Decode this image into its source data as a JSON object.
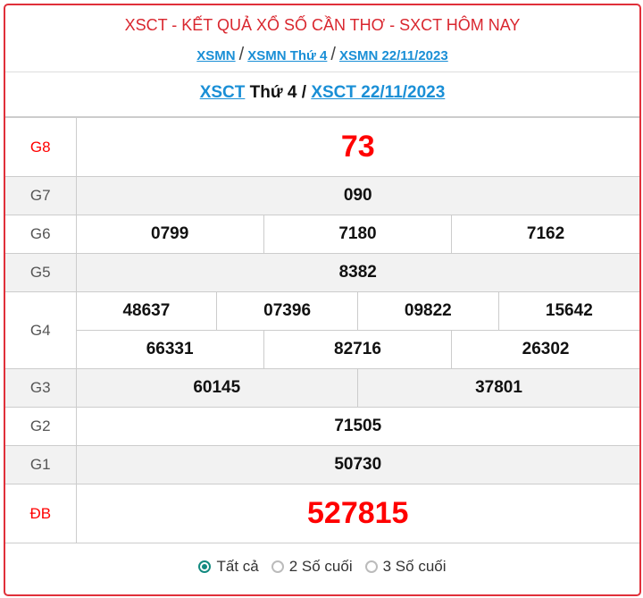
{
  "header": {
    "title": "XSCT - KẾT QUẢ XỔ SỐ CẦN THƠ - SXCT HÔM NAY",
    "links": [
      "XSMN",
      "XSMN Thứ 4",
      "XSMN 22/11/2023"
    ],
    "separator": "/"
  },
  "subheader": {
    "link1": "XSCT",
    "text": "Thứ 4 /",
    "link2": "XSCT 22/11/2023"
  },
  "results": {
    "g8": {
      "label": "G8",
      "values": [
        "73"
      ]
    },
    "g7": {
      "label": "G7",
      "values": [
        "090"
      ]
    },
    "g6": {
      "label": "G6",
      "values": [
        "0799",
        "7180",
        "7162"
      ]
    },
    "g5": {
      "label": "G5",
      "values": [
        "8382"
      ]
    },
    "g4": {
      "label": "G4",
      "values": [
        "48637",
        "07396",
        "09822",
        "15642",
        "66331",
        "82716",
        "26302"
      ]
    },
    "g3": {
      "label": "G3",
      "values": [
        "60145",
        "37801"
      ]
    },
    "g2": {
      "label": "G2",
      "values": [
        "71505"
      ]
    },
    "g1": {
      "label": "G1",
      "values": [
        "50730"
      ]
    },
    "db": {
      "label": "ĐB",
      "values": [
        "527815"
      ]
    }
  },
  "footer": {
    "options": [
      "Tất cả",
      "2 Số cuối",
      "3 Số cuối"
    ],
    "selected": "Tất cả"
  },
  "colors": {
    "accent": "#e0303a",
    "link": "#1a8fd6",
    "special": "#ff0000",
    "radio": "#138a80"
  }
}
